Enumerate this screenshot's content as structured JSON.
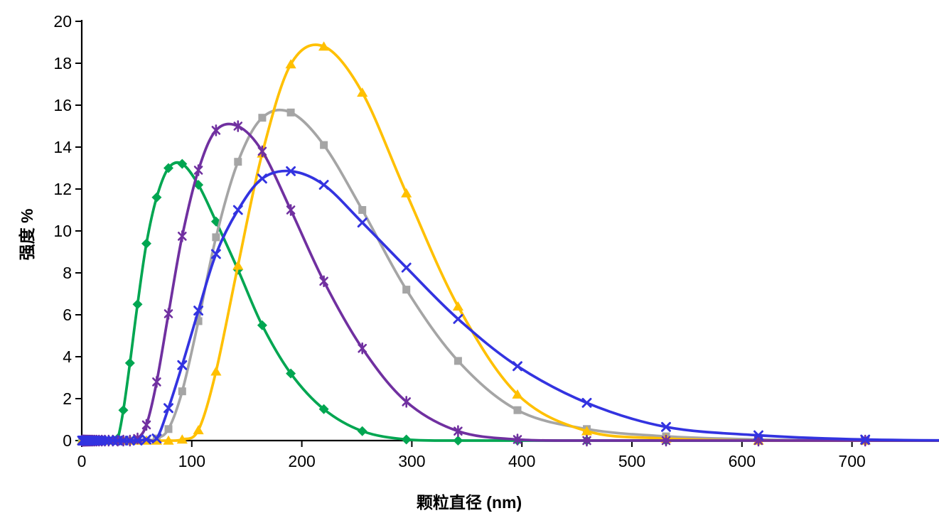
{
  "axes": {
    "x": {
      "title": "颗粒直径 (nm)",
      "min": 0,
      "max": 750,
      "tick_labels": [
        "0",
        "100",
        "200",
        "300",
        "400",
        "500",
        "600",
        "700"
      ],
      "tick_values": [
        0,
        100,
        200,
        300,
        400,
        500,
        600,
        700
      ]
    },
    "y": {
      "title": "强度 %",
      "min": 0,
      "max": 20,
      "tick_labels": [
        "0",
        "2",
        "4",
        "6",
        "8",
        "10",
        "12",
        "14",
        "16",
        "18",
        "20"
      ],
      "tick_values": [
        0,
        2,
        4,
        6,
        8,
        10,
        12,
        14,
        16,
        18,
        20
      ]
    }
  },
  "chart_data": {
    "type": "line",
    "title": "",
    "xlabel": "颗粒直径 (nm)",
    "ylabel": "强度 %",
    "xlim": [
      0,
      750
    ],
    "ylim": [
      0,
      20
    ],
    "grid": false,
    "legend": "none",
    "background": "#FFFFFF",
    "line_style": "smooth",
    "x": [
      0.4,
      0.46,
      0.54,
      0.62,
      0.72,
      0.83,
      0.96,
      1.11,
      1.29,
      1.5,
      1.74,
      2.01,
      2.33,
      2.7,
      3.12,
      3.62,
      4.19,
      4.85,
      5.61,
      6.5,
      7.53,
      8.72,
      10.1,
      11.7,
      13.5,
      15.7,
      18.2,
      21,
      24.4,
      28.2,
      32.7,
      37.8,
      43.8,
      50.7,
      58.8,
      68.1,
      78.8,
      91.3,
      106,
      122,
      142,
      164,
      190,
      220,
      255,
      295,
      342,
      396,
      459,
      531,
      615,
      712,
      825
    ],
    "series": [
      {
        "name": "green-diamond-series",
        "color": "#00A651",
        "marker": "diamond",
        "peak": {
          "x": 91,
          "y": 13.2
        },
        "values": [
          0,
          0,
          0,
          0,
          0,
          0,
          0,
          0,
          0,
          0,
          0,
          0,
          0,
          0,
          0,
          0,
          0,
          0,
          0,
          0,
          0,
          0,
          0,
          0,
          0,
          0,
          0,
          0,
          0,
          0,
          0.1,
          1.45,
          3.7,
          6.5,
          9.4,
          11.6,
          13.0,
          13.2,
          12.2,
          10.45,
          8.15,
          5.5,
          3.2,
          1.5,
          0.45,
          0.05,
          0,
          0,
          0,
          0,
          0,
          0,
          0
        ]
      },
      {
        "name": "gray-square-series",
        "color": "#A5A5A5",
        "marker": "square",
        "peak": {
          "x": 190,
          "y": 15.65
        },
        "values": [
          0,
          0,
          0,
          0,
          0,
          0,
          0,
          0,
          0,
          0,
          0,
          0,
          0,
          0,
          0,
          0,
          0,
          0,
          0,
          0,
          0,
          0,
          0,
          0,
          0,
          0,
          0,
          0,
          0,
          0,
          0,
          0,
          0,
          0,
          0,
          0.1,
          0.55,
          2.35,
          5.7,
          9.7,
          13.3,
          15.4,
          15.65,
          14.1,
          11.0,
          7.2,
          3.8,
          1.45,
          0.55,
          0.2,
          0.05,
          0,
          0
        ]
      },
      {
        "name": "gold-triangle-series",
        "color": "#FFC000",
        "marker": "triangle",
        "peak": {
          "x": 220,
          "y": 18.8
        },
        "values": [
          0,
          0,
          0,
          0,
          0,
          0,
          0,
          0,
          0,
          0,
          0,
          0,
          0,
          0,
          0,
          0,
          0,
          0,
          0,
          0,
          0,
          0,
          0,
          0,
          0,
          0,
          0,
          0,
          0,
          0,
          0,
          0,
          0,
          0,
          0,
          0,
          0,
          0.05,
          0.5,
          3.3,
          8.35,
          13.7,
          17.95,
          18.8,
          16.6,
          11.8,
          6.4,
          2.2,
          0.45,
          0.1,
          0,
          0,
          0
        ]
      },
      {
        "name": "purple-asterisk-series",
        "color": "#7030A0",
        "marker": "asterisk",
        "peak": {
          "x": 142,
          "y": 15.0
        },
        "values": [
          0,
          0,
          0,
          0,
          0,
          0,
          0,
          0,
          0,
          0,
          0,
          0,
          0,
          0,
          0,
          0,
          0,
          0,
          0,
          0,
          0,
          0,
          0,
          0,
          0,
          0,
          0,
          0,
          0,
          0,
          0,
          0,
          0,
          0.1,
          0.75,
          2.8,
          6.05,
          9.75,
          12.9,
          14.8,
          15.0,
          13.8,
          11.0,
          7.6,
          4.4,
          1.85,
          0.45,
          0.05,
          0,
          0,
          0,
          0,
          0
        ]
      },
      {
        "name": "blue-x-series",
        "color": "#3333E0",
        "marker": "x",
        "peak": {
          "x": 190,
          "y": 12.85
        },
        "values": [
          0,
          0,
          0,
          0,
          0,
          0,
          0,
          0,
          0,
          0,
          0,
          0,
          0,
          0,
          0,
          0,
          0,
          0,
          0,
          0,
          0,
          0,
          0,
          0,
          0,
          0,
          0,
          0,
          0,
          0,
          0,
          0,
          0,
          0,
          0.05,
          0.1,
          1.55,
          3.6,
          6.2,
          8.9,
          11.0,
          12.5,
          12.85,
          12.2,
          10.4,
          8.25,
          5.8,
          3.55,
          1.8,
          0.65,
          0.25,
          0.05,
          0
        ]
      }
    ]
  }
}
